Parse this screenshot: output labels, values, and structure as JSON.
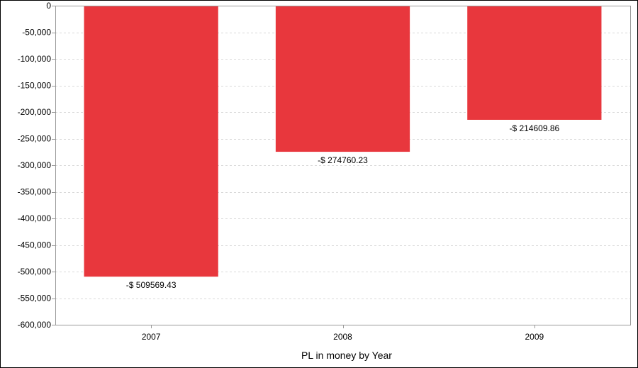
{
  "chart_data": {
    "type": "bar",
    "categories": [
      "2007",
      "2008",
      "2009"
    ],
    "values": [
      -509569.43,
      -274760.23,
      -214609.86
    ],
    "data_labels": [
      "-$ 509569.43",
      "-$ 274760.23",
      "-$ 214609.86"
    ],
    "title": "",
    "xlabel": "PL in money by Year",
    "ylabel": "",
    "ylim": [
      -600000,
      0
    ],
    "yticks": [
      0,
      -50000,
      -100000,
      -150000,
      -200000,
      -250000,
      -300000,
      -350000,
      -400000,
      -450000,
      -500000,
      -550000,
      -600000
    ],
    "ytick_labels": [
      "0",
      "-50,000",
      "-100,000",
      "-150,000",
      "-200,000",
      "-250,000",
      "-300,000",
      "-350,000",
      "-400,000",
      "-450,000",
      "-500,000",
      "-550,000",
      "-600,000"
    ],
    "grid": true,
    "legend": "none",
    "bar_color": "#e8373d",
    "grid_color": "#d9d9d9",
    "axis_color": "#999999"
  }
}
